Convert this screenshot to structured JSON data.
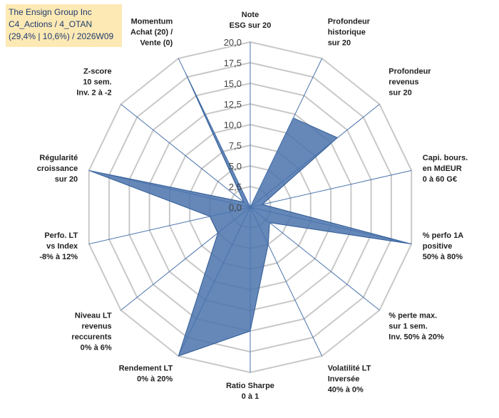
{
  "header": {
    "title_lines": [
      "The Ensign Group Inc",
      "C4_Actions / 4_OTAN",
      "(29,4% | 10,6%) / 2026W09"
    ]
  },
  "chart_data": {
    "type": "radar",
    "title": "The Ensign Group Inc — C4_Actions / 4_OTAN (29,4% | 10,6%) / 2026W09",
    "rlim": [
      0,
      20
    ],
    "tick_step": 2.5,
    "tick_labels": [
      "0,0",
      "2,5",
      "5,0",
      "7,5",
      "10,0",
      "12,5",
      "15,0",
      "17,5",
      "20,0"
    ],
    "grid": true,
    "axes": [
      {
        "label": [
          "Note",
          "ESG sur 20"
        ],
        "value": 0
      },
      {
        "label": [
          "Profondeur",
          "historique",
          "sur 20"
        ],
        "value": 12
      },
      {
        "label": [
          "Profondeur",
          "revenus",
          "sur 20"
        ],
        "value": 13.5
      },
      {
        "label": [
          "Capi. bours.",
          "en MdEUR",
          "0 à 60 G€"
        ],
        "value": 1.5
      },
      {
        "label": [
          "% perfo 1A",
          "positive",
          "50% à 80%"
        ],
        "value": 20
      },
      {
        "label": [
          "% perte max.",
          "sur 1 sem.",
          "Inv. 50% à 20%"
        ],
        "value": 3
      },
      {
        "label": [
          "Volatilité LT",
          "Inversée",
          "40% à 0%"
        ],
        "value": 5
      },
      {
        "label": [
          "Ratio Sharpe",
          "0 à 1"
        ],
        "value": 15
      },
      {
        "label": [
          "Rendement LT",
          "0% à 20%"
        ],
        "value": 20
      },
      {
        "label": [
          "Niveau LT",
          "revenus",
          "reccurents",
          "0% à 6%"
        ],
        "value": 5
      },
      {
        "label": [
          "Perfo. LT",
          "vs Index",
          "-8% à 12%"
        ],
        "value": 5
      },
      {
        "label": [
          "Régularité",
          "croissance",
          "sur 20"
        ],
        "value": 20
      },
      {
        "label": [
          "Z-score",
          "10 sem.",
          "Inv. 2 à -2"
        ],
        "value": 1
      },
      {
        "label": [
          "Momentum",
          "Achat (20) /",
          "Vente (0)"
        ],
        "value": 18
      }
    ],
    "series": [
      {
        "name": "The Ensign Group Inc",
        "color": "#4a73ad",
        "fill": "#4a73ad"
      }
    ],
    "colors": {
      "grid": "#c8c8c8",
      "spoke": "#4a73ad",
      "title_bg": "#fde9b4",
      "title_fg": "#1f3b6e"
    }
  }
}
